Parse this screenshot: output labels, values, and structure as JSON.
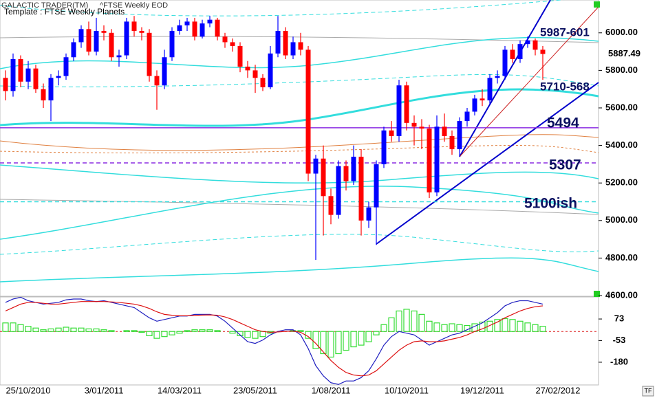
{
  "corner_button": "TF",
  "chart_data": [
    {
      "type": "candlestick",
      "source": "GALACTIC TRADER(TM)",
      "title": "^FTSE Weekly EOD",
      "subtitle": "Template : FTSE Weekly Planets",
      "up_color": "#0000ff",
      "down_color": "#ff0000",
      "categories": [
        null,
        null,
        null,
        "25/10/2010",
        null,
        null,
        null,
        null,
        null,
        null,
        null,
        null,
        null,
        "3/01/2011",
        null,
        null,
        null,
        null,
        null,
        null,
        null,
        null,
        null,
        "14/03/2011",
        null,
        null,
        null,
        null,
        null,
        null,
        null,
        null,
        null,
        "23/05/2011",
        null,
        null,
        null,
        null,
        null,
        null,
        null,
        null,
        null,
        "1/08/2011",
        null,
        null,
        null,
        null,
        null,
        null,
        null,
        null,
        null,
        "10/10/2011",
        null,
        null,
        null,
        null,
        null,
        null,
        null,
        null,
        null,
        "19/12/2011",
        null,
        null,
        null,
        null,
        null,
        null,
        null,
        null,
        null,
        "27/02/2012"
      ],
      "open": [
        5760,
        5690,
        5860,
        5740,
        5810,
        5700,
        5640,
        5760,
        5770,
        5870,
        5950,
        6020,
        5900,
        6010,
        6000,
        5870,
        5880,
        6060,
        6010,
        6000,
        5770,
        5720,
        5870,
        6010,
        6040,
        6060,
        5980,
        6050,
        6070,
        5980,
        5950,
        5930,
        5820,
        5800,
        5760,
        5710,
        5890,
        6010,
        5880,
        5950,
        5910,
        5250,
        5330,
        5130,
        5030,
        5290,
        5210,
        5340,
        5000,
        5070,
        5300,
        5480,
        5450,
        5720,
        5520,
        5500,
        5490,
        5150,
        5500,
        5450,
        5380,
        5530,
        5580,
        5650,
        5640,
        5760,
        5770,
        5910,
        5860,
        5940,
        5960,
        5910,
        null,
        null
      ],
      "high": [
        5800,
        5890,
        5880,
        5850,
        5830,
        5730,
        5780,
        5800,
        5890,
        5970,
        6040,
        6060,
        6080,
        6040,
        6020,
        5910,
        6080,
        6090,
        6030,
        6020,
        5800,
        5910,
        6030,
        6070,
        6080,
        6080,
        6070,
        6090,
        6080,
        6000,
        5970,
        5950,
        5850,
        5830,
        5780,
        5930,
        6090,
        6030,
        5980,
        6000,
        5930,
        5350,
        5400,
        5170,
        5320,
        5320,
        5400,
        5380,
        5100,
        5320,
        5500,
        5530,
        5750,
        5740,
        5560,
        5540,
        5510,
        5560,
        5570,
        5480,
        5550,
        5600,
        5670,
        5700,
        5780,
        5800,
        5930,
        5940,
        5960,
        5980,
        5970,
        5930,
        null,
        null
      ],
      "low": [
        5640,
        5660,
        5710,
        5700,
        5680,
        5600,
        5530,
        5720,
        5750,
        5850,
        5920,
        5880,
        5880,
        5960,
        5850,
        5820,
        5860,
        5980,
        5960,
        5740,
        5590,
        5700,
        5850,
        5990,
        6010,
        5960,
        5970,
        6030,
        5960,
        5920,
        5900,
        5790,
        5760,
        5680,
        5690,
        5700,
        5870,
        5860,
        5860,
        5880,
        5210,
        4790,
        4920,
        4980,
        5010,
        5160,
        5190,
        4920,
        4960,
        4870,
        5280,
        5420,
        5420,
        5480,
        5400,
        5380,
        5120,
        5130,
        5420,
        5350,
        5340,
        5500,
        5560,
        5610,
        5620,
        5730,
        5750,
        5840,
        5840,
        5920,
        5880,
        5750,
        null,
        null
      ],
      "close": [
        5690,
        5860,
        5740,
        5810,
        5700,
        5640,
        5760,
        5770,
        5870,
        5950,
        6020,
        5900,
        6010,
        6000,
        5870,
        5880,
        6060,
        6010,
        6000,
        5770,
        5720,
        5870,
        6010,
        6040,
        6060,
        5980,
        6050,
        6070,
        5980,
        5950,
        5930,
        5820,
        5800,
        5760,
        5710,
        5890,
        6010,
        5880,
        5950,
        5910,
        5250,
        5330,
        5130,
        5030,
        5290,
        5210,
        5340,
        5000,
        5070,
        5300,
        5480,
        5450,
        5720,
        5520,
        5500,
        5490,
        5150,
        5500,
        5450,
        5380,
        5530,
        5580,
        5650,
        5640,
        5760,
        5770,
        5910,
        5860,
        5940,
        5960,
        5910,
        5887.49,
        null,
        null
      ],
      "ylim": [
        4600,
        6175
      ],
      "yticks": [
        {
          "value": 4600,
          "label": "4600.00"
        },
        {
          "value": 4800,
          "label": "4800.00"
        },
        {
          "value": 5000,
          "label": "5000.00"
        },
        {
          "value": 5200,
          "label": "5200.00"
        },
        {
          "value": 5400,
          "label": "5400.00"
        },
        {
          "value": 5600,
          "label": "5600.00"
        },
        {
          "value": 5800,
          "label": "5800.00"
        },
        {
          "value": 6000,
          "label": "6000.00"
        }
      ],
      "grid": false,
      "levels": [
        {
          "value": 5494,
          "color": "#8a2be2",
          "dashed": false
        },
        {
          "value": 5307,
          "color": "#8a2be2",
          "dashed": true
        },
        {
          "value": 5100,
          "color": "#33dddd",
          "dashed": true
        }
      ],
      "annotations": [
        "5987-601",
        "5710-568",
        "5494",
        "5307",
        "5100ish"
      ]
    },
    {
      "type": "oscillator",
      "ylim": [
        -313,
        202
      ],
      "yticks": [
        73,
        -53,
        -180
      ],
      "zero_line": 0,
      "series": [
        {
          "name": "histogram",
          "color": "#33dd33",
          "values": [
            50,
            50,
            40,
            30,
            20,
            10,
            15,
            20,
            25,
            20,
            20,
            15,
            15,
            10,
            5,
            0,
            5,
            5,
            -5,
            -25,
            -40,
            -30,
            -20,
            -10,
            5,
            10,
            10,
            10,
            5,
            0,
            -10,
            -25,
            -35,
            -40,
            -30,
            -10,
            0,
            0,
            5,
            5,
            -40,
            -100,
            -130,
            -150,
            -130,
            -110,
            -90,
            -80,
            -60,
            -20,
            40,
            80,
            120,
            130,
            120,
            100,
            60,
            50,
            40,
            45,
            40,
            35,
            45,
            55,
            60,
            70,
            75,
            70,
            60,
            50,
            40,
            30,
            null,
            null
          ]
        },
        {
          "name": "fast",
          "color": "#2020c0",
          "values": [
            170,
            190,
            200,
            180,
            170,
            160,
            165,
            170,
            185,
            190,
            190,
            180,
            175,
            180,
            170,
            160,
            150,
            140,
            110,
            80,
            60,
            70,
            80,
            90,
            90,
            100,
            100,
            100,
            90,
            60,
            20,
            -20,
            -60,
            -70,
            -50,
            -20,
            0,
            10,
            10,
            -20,
            -100,
            -200,
            -260,
            -300,
            -310,
            -290,
            -290,
            -270,
            -230,
            -160,
            -80,
            -30,
            0,
            -10,
            -20,
            -50,
            -80,
            -60,
            -40,
            -20,
            -10,
            10,
            30,
            50,
            80,
            110,
            150,
            170,
            180,
            180,
            170,
            160,
            null,
            null
          ]
        },
        {
          "name": "slow",
          "color": "#dd1010",
          "values": [
            120,
            140,
            160,
            170,
            170,
            165,
            160,
            160,
            165,
            170,
            175,
            175,
            175,
            175,
            173,
            170,
            165,
            160,
            150,
            135,
            115,
            100,
            95,
            92,
            92,
            94,
            96,
            97,
            95,
            85,
            70,
            50,
            30,
            10,
            0,
            -5,
            -3,
            0,
            2,
            -5,
            -30,
            -70,
            -120,
            -170,
            -210,
            -240,
            -255,
            -260,
            -255,
            -230,
            -190,
            -150,
            -110,
            -80,
            -60,
            -55,
            -60,
            -60,
            -55,
            -45,
            -35,
            -20,
            0,
            15,
            35,
            55,
            80,
            100,
            120,
            135,
            145,
            150,
            null,
            null
          ]
        }
      ]
    }
  ]
}
